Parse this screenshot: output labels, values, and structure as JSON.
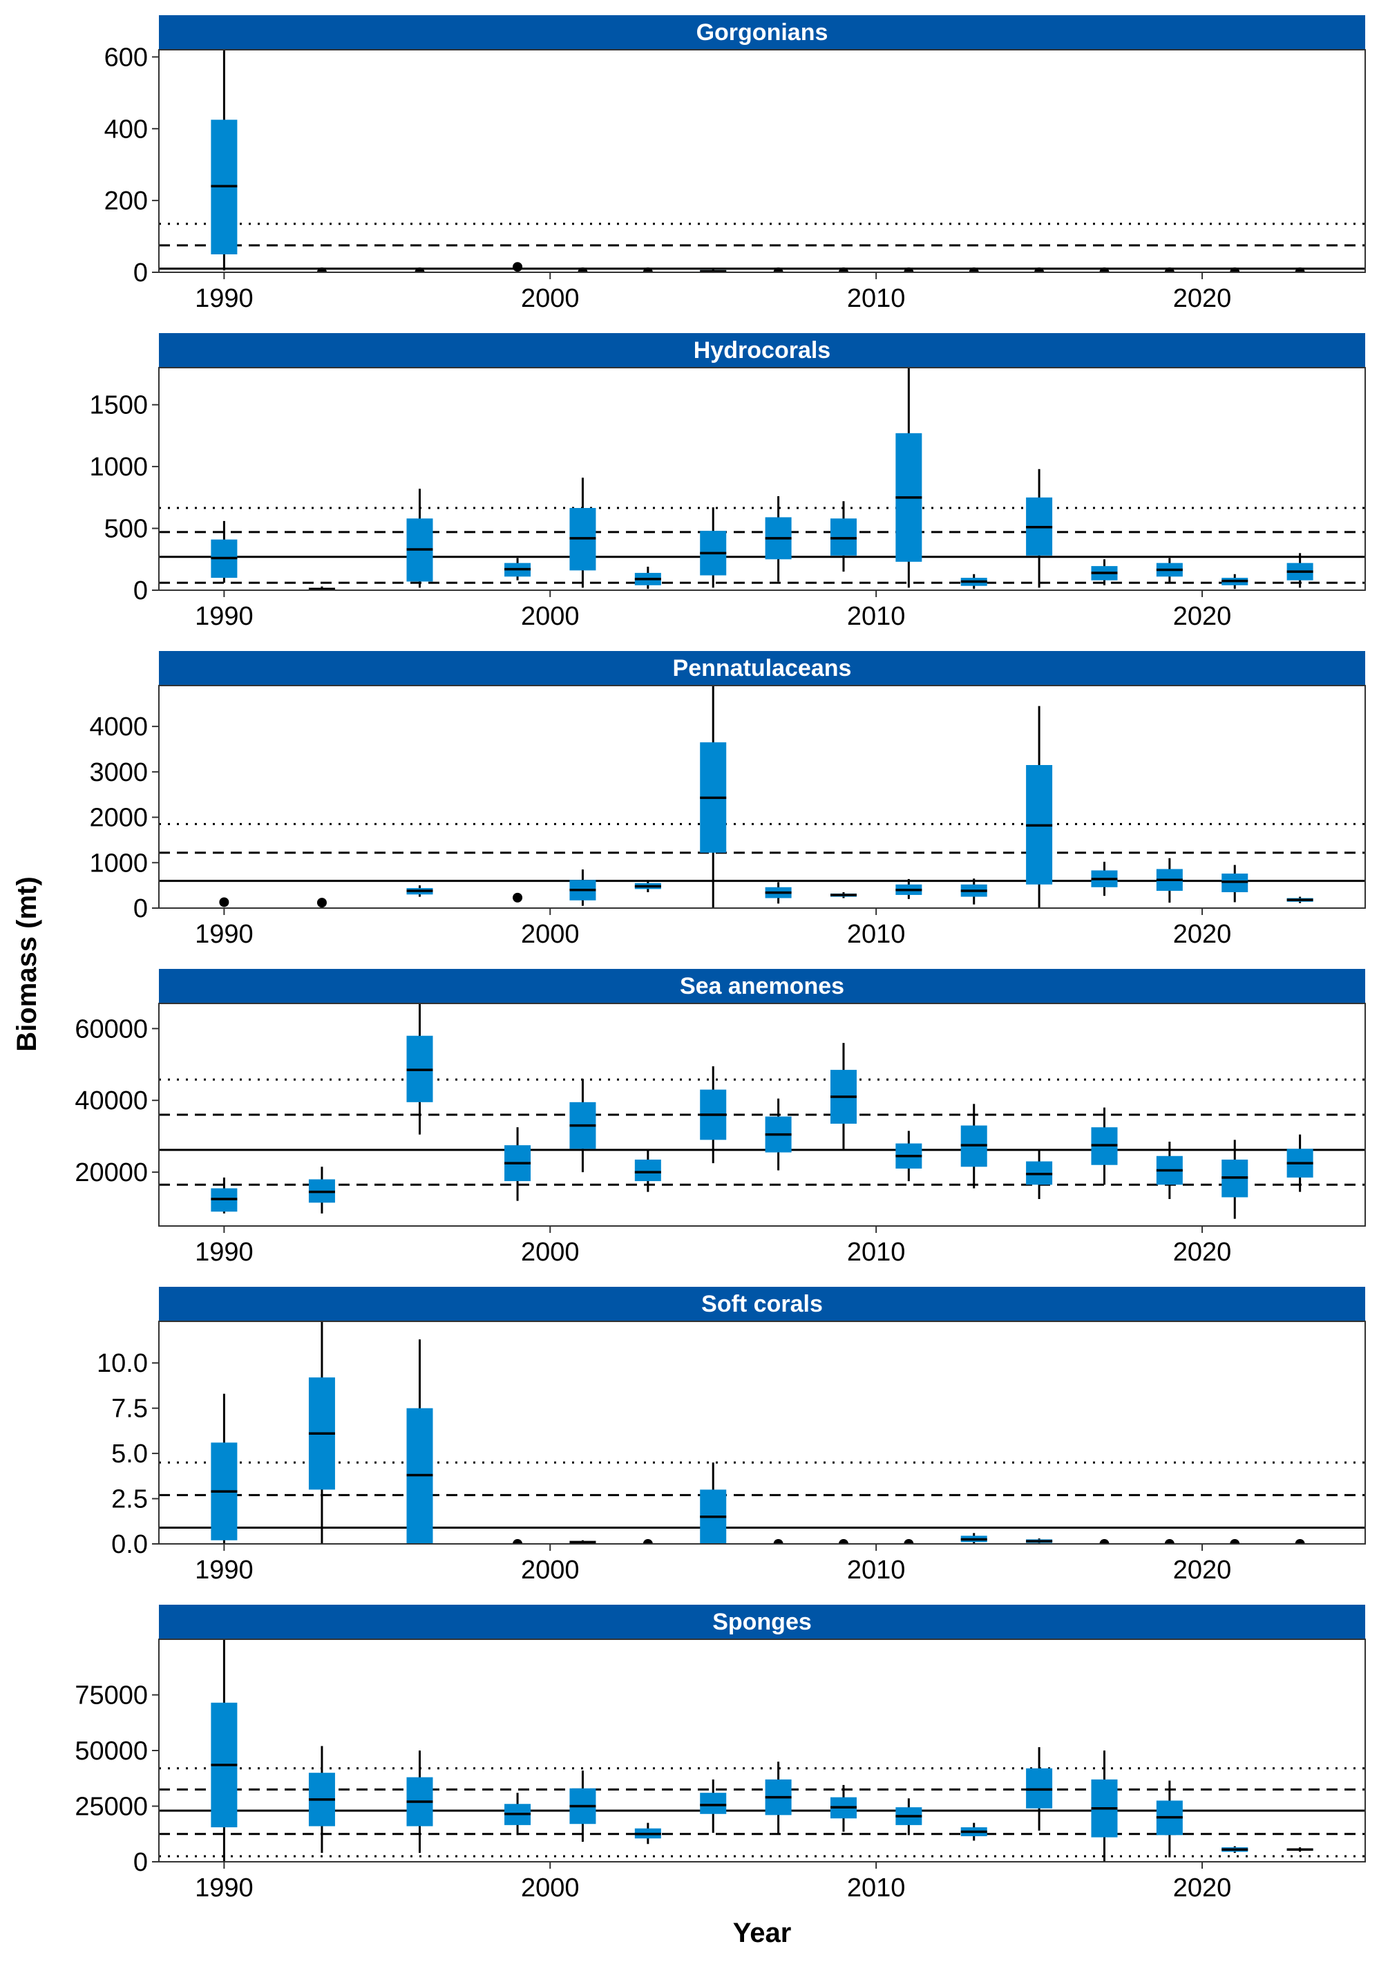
{
  "figure": {
    "xlabel": "Year",
    "ylabel": "Biomass (mt)",
    "colors": {
      "box": "#0088d1",
      "strip": "#0055a6",
      "strip_text": "#ffffff",
      "line": "#000000"
    }
  },
  "chart_data": [
    {
      "type": "box",
      "title": "Gorgonians",
      "xlim": [
        1988,
        2025
      ],
      "ylim": [
        0,
        620
      ],
      "xticks": [
        1990,
        2000,
        2010,
        2020
      ],
      "yticks": [
        0,
        200,
        400,
        600
      ],
      "ytick_labels": [
        "0",
        "200",
        "400",
        "600"
      ],
      "ref_lines": {
        "solid": 10,
        "dashed": [
          75
        ],
        "dotted": [
          135
        ]
      },
      "boxes": [
        {
          "x": 1990,
          "lo": 5,
          "q1": 50,
          "med": 240,
          "q3": 425,
          "hi": 620
        },
        {
          "x": 1993,
          "lo": 0,
          "q1": 0,
          "med": 0,
          "q3": 0,
          "hi": 0,
          "dot": true
        },
        {
          "x": 1996,
          "lo": 0,
          "q1": 0,
          "med": 0,
          "q3": 0,
          "hi": 0,
          "dot": true
        },
        {
          "x": 1999,
          "lo": 15,
          "q1": 15,
          "med": 15,
          "q3": 15,
          "hi": 15,
          "dot": true
        },
        {
          "x": 2001,
          "lo": 0,
          "q1": 0,
          "med": 0,
          "q3": 0,
          "hi": 0,
          "dot": true
        },
        {
          "x": 2003,
          "lo": 0,
          "q1": 0,
          "med": 0,
          "q3": 0,
          "hi": 0,
          "dot": true
        },
        {
          "x": 2005,
          "lo": 0,
          "q1": 1,
          "med": 3,
          "q3": 6,
          "hi": 9
        },
        {
          "x": 2007,
          "lo": 0,
          "q1": 0,
          "med": 0,
          "q3": 0,
          "hi": 0,
          "dot": true
        },
        {
          "x": 2009,
          "lo": 0,
          "q1": 0,
          "med": 0,
          "q3": 0,
          "hi": 0,
          "dot": true
        },
        {
          "x": 2011,
          "lo": 0,
          "q1": 0,
          "med": 0,
          "q3": 0,
          "hi": 0,
          "dot": true
        },
        {
          "x": 2013,
          "lo": 0,
          "q1": 0,
          "med": 0,
          "q3": 0,
          "hi": 0,
          "dot": true
        },
        {
          "x": 2015,
          "lo": 0,
          "q1": 0,
          "med": 0,
          "q3": 0,
          "hi": 0,
          "dot": true
        },
        {
          "x": 2017,
          "lo": 0,
          "q1": 0,
          "med": 0,
          "q3": 0,
          "hi": 0,
          "dot": true
        },
        {
          "x": 2019,
          "lo": 0,
          "q1": 0,
          "med": 0,
          "q3": 0,
          "hi": 0,
          "dot": true
        },
        {
          "x": 2021,
          "lo": 0,
          "q1": 0,
          "med": 0,
          "q3": 0,
          "hi": 0,
          "dot": true
        },
        {
          "x": 2023,
          "lo": 0,
          "q1": 0,
          "med": 0,
          "q3": 0,
          "hi": 0,
          "dot": true
        }
      ]
    },
    {
      "type": "box",
      "title": "Hydrocorals",
      "xlim": [
        1988,
        2025
      ],
      "ylim": [
        0,
        1800
      ],
      "xticks": [
        1990,
        2000,
        2010,
        2020
      ],
      "yticks": [
        0,
        500,
        1000,
        1500
      ],
      "ytick_labels": [
        "0",
        "500",
        "1000",
        "1500"
      ],
      "ref_lines": {
        "solid": 270,
        "dashed": [
          60,
          470
        ],
        "dotted": [
          665
        ]
      },
      "boxes": [
        {
          "x": 1990,
          "lo": 60,
          "q1": 100,
          "med": 260,
          "q3": 410,
          "hi": 560
        },
        {
          "x": 1993,
          "lo": 0,
          "q1": 5,
          "med": 10,
          "q3": 15,
          "hi": 30
        },
        {
          "x": 1996,
          "lo": 20,
          "q1": 70,
          "med": 330,
          "q3": 580,
          "hi": 820
        },
        {
          "x": 1999,
          "lo": 80,
          "q1": 110,
          "med": 170,
          "q3": 220,
          "hi": 260
        },
        {
          "x": 2001,
          "lo": 20,
          "q1": 160,
          "med": 420,
          "q3": 665,
          "hi": 910
        },
        {
          "x": 2003,
          "lo": 10,
          "q1": 40,
          "med": 90,
          "q3": 140,
          "hi": 190
        },
        {
          "x": 2005,
          "lo": 20,
          "q1": 120,
          "med": 300,
          "q3": 480,
          "hi": 670
        },
        {
          "x": 2007,
          "lo": 70,
          "q1": 250,
          "med": 420,
          "q3": 590,
          "hi": 760
        },
        {
          "x": 2009,
          "lo": 150,
          "q1": 280,
          "med": 420,
          "q3": 580,
          "hi": 720
        },
        {
          "x": 2011,
          "lo": 20,
          "q1": 230,
          "med": 750,
          "q3": 1270,
          "hi": 1800
        },
        {
          "x": 2013,
          "lo": 10,
          "q1": 35,
          "med": 70,
          "q3": 100,
          "hi": 130
        },
        {
          "x": 2015,
          "lo": 20,
          "q1": 280,
          "med": 510,
          "q3": 750,
          "hi": 980
        },
        {
          "x": 2017,
          "lo": 40,
          "q1": 80,
          "med": 140,
          "q3": 195,
          "hi": 250
        },
        {
          "x": 2019,
          "lo": 60,
          "q1": 110,
          "med": 165,
          "q3": 220,
          "hi": 260
        },
        {
          "x": 2021,
          "lo": 10,
          "q1": 40,
          "med": 75,
          "q3": 100,
          "hi": 130
        },
        {
          "x": 2023,
          "lo": 20,
          "q1": 80,
          "med": 150,
          "q3": 220,
          "hi": 300
        }
      ]
    },
    {
      "type": "box",
      "title": "Pennatulaceans",
      "xlim": [
        1988,
        2025
      ],
      "ylim": [
        0,
        4900
      ],
      "xticks": [
        1990,
        2000,
        2010,
        2020
      ],
      "yticks": [
        0,
        1000,
        2000,
        3000,
        4000
      ],
      "ytick_labels": [
        "0",
        "1000",
        "2000",
        "3000",
        "4000"
      ],
      "ref_lines": {
        "solid": 600,
        "dashed": [
          1220
        ],
        "dotted": [
          1850
        ]
      },
      "boxes": [
        {
          "x": 1990,
          "lo": 130,
          "q1": 130,
          "med": 130,
          "q3": 130,
          "hi": 130,
          "dot": true
        },
        {
          "x": 1993,
          "lo": 120,
          "q1": 120,
          "med": 120,
          "q3": 120,
          "hi": 120,
          "dot": true
        },
        {
          "x": 1996,
          "lo": 250,
          "q1": 300,
          "med": 380,
          "q3": 440,
          "hi": 500
        },
        {
          "x": 1999,
          "lo": 230,
          "q1": 230,
          "med": 230,
          "q3": 230,
          "hi": 230,
          "dot": true
        },
        {
          "x": 2001,
          "lo": 50,
          "q1": 170,
          "med": 400,
          "q3": 620,
          "hi": 850
        },
        {
          "x": 2003,
          "lo": 350,
          "q1": 420,
          "med": 480,
          "q3": 550,
          "hi": 600
        },
        {
          "x": 2005,
          "lo": 0,
          "q1": 1220,
          "med": 2430,
          "q3": 3650,
          "hi": 4900
        },
        {
          "x": 2007,
          "lo": 100,
          "q1": 220,
          "med": 340,
          "q3": 460,
          "hi": 570
        },
        {
          "x": 2009,
          "lo": 220,
          "q1": 250,
          "med": 290,
          "q3": 320,
          "hi": 350
        },
        {
          "x": 2011,
          "lo": 200,
          "q1": 290,
          "med": 400,
          "q3": 520,
          "hi": 640
        },
        {
          "x": 2013,
          "lo": 80,
          "q1": 250,
          "med": 380,
          "q3": 520,
          "hi": 650
        },
        {
          "x": 2015,
          "lo": 0,
          "q1": 520,
          "med": 1820,
          "q3": 3150,
          "hi": 4450
        },
        {
          "x": 2017,
          "lo": 270,
          "q1": 460,
          "med": 640,
          "q3": 830,
          "hi": 1020
        },
        {
          "x": 2019,
          "lo": 120,
          "q1": 380,
          "med": 620,
          "q3": 860,
          "hi": 1100
        },
        {
          "x": 2021,
          "lo": 130,
          "q1": 350,
          "med": 580,
          "q3": 760,
          "hi": 950
        },
        {
          "x": 2023,
          "lo": 110,
          "q1": 140,
          "med": 180,
          "q3": 220,
          "hi": 250
        }
      ]
    },
    {
      "type": "box",
      "title": "Sea anemones",
      "xlim": [
        1988,
        2025
      ],
      "ylim": [
        5000,
        67000
      ],
      "xticks": [
        1990,
        2000,
        2010,
        2020
      ],
      "yticks": [
        20000,
        40000,
        60000
      ],
      "ytick_labels": [
        "20000",
        "40000",
        "60000"
      ],
      "ref_lines": {
        "solid": 26200,
        "dashed": [
          16500,
          36000
        ],
        "dotted": [
          45800
        ]
      },
      "boxes": [
        {
          "x": 1990,
          "lo": 8500,
          "q1": 9000,
          "med": 12500,
          "q3": 15500,
          "hi": 18500
        },
        {
          "x": 1993,
          "lo": 8500,
          "q1": 11500,
          "med": 14500,
          "q3": 18000,
          "hi": 21500
        },
        {
          "x": 1996,
          "lo": 30500,
          "q1": 39500,
          "med": 48500,
          "q3": 58000,
          "hi": 67000
        },
        {
          "x": 1999,
          "lo": 12000,
          "q1": 17500,
          "med": 22500,
          "q3": 27500,
          "hi": 32500
        },
        {
          "x": 2001,
          "lo": 20000,
          "q1": 26500,
          "med": 33000,
          "q3": 39500,
          "hi": 46000
        },
        {
          "x": 2003,
          "lo": 14500,
          "q1": 17500,
          "med": 20000,
          "q3": 23500,
          "hi": 26000
        },
        {
          "x": 2005,
          "lo": 22500,
          "q1": 29000,
          "med": 36000,
          "q3": 43000,
          "hi": 49500
        },
        {
          "x": 2007,
          "lo": 20500,
          "q1": 25500,
          "med": 30500,
          "q3": 35500,
          "hi": 40500
        },
        {
          "x": 2009,
          "lo": 26500,
          "q1": 33500,
          "med": 41000,
          "q3": 48500,
          "hi": 56000
        },
        {
          "x": 2011,
          "lo": 17500,
          "q1": 21000,
          "med": 24500,
          "q3": 28000,
          "hi": 31500
        },
        {
          "x": 2013,
          "lo": 15500,
          "q1": 21500,
          "med": 27500,
          "q3": 33000,
          "hi": 39000
        },
        {
          "x": 2015,
          "lo": 12500,
          "q1": 16500,
          "med": 19500,
          "q3": 23000,
          "hi": 26000
        },
        {
          "x": 2017,
          "lo": 16500,
          "q1": 22000,
          "med": 27500,
          "q3": 32500,
          "hi": 38000
        },
        {
          "x": 2019,
          "lo": 12500,
          "q1": 16500,
          "med": 20500,
          "q3": 24500,
          "hi": 28500
        },
        {
          "x": 2021,
          "lo": 7000,
          "q1": 13000,
          "med": 18500,
          "q3": 23500,
          "hi": 29000
        },
        {
          "x": 2023,
          "lo": 14500,
          "q1": 18500,
          "med": 22500,
          "q3": 26500,
          "hi": 30500
        }
      ]
    },
    {
      "type": "box",
      "title": "Soft corals",
      "xlim": [
        1988,
        2025
      ],
      "ylim": [
        0,
        12.3
      ],
      "xticks": [
        1990,
        2000,
        2010,
        2020
      ],
      "yticks": [
        0,
        2.5,
        5,
        7.5,
        10
      ],
      "ytick_labels": [
        "0.0",
        "2.5",
        "5.0",
        "7.5",
        "10.0"
      ],
      "ref_lines": {
        "solid": 0.9,
        "dashed": [
          2.7
        ],
        "dotted": [
          4.5
        ]
      },
      "boxes": [
        {
          "x": 1990,
          "lo": 0,
          "q1": 0.2,
          "med": 2.9,
          "q3": 5.6,
          "hi": 8.3
        },
        {
          "x": 1993,
          "lo": 0,
          "q1": 3,
          "med": 6.1,
          "q3": 9.2,
          "hi": 12.3
        },
        {
          "x": 1996,
          "lo": 0,
          "q1": 0,
          "med": 3.8,
          "q3": 7.5,
          "hi": 11.3
        },
        {
          "x": 1999,
          "lo": 0,
          "q1": 0,
          "med": 0,
          "q3": 0,
          "hi": 0,
          "dot": true
        },
        {
          "x": 2001,
          "lo": 0,
          "q1": 0.05,
          "med": 0.1,
          "q3": 0.15,
          "hi": 0.2
        },
        {
          "x": 2003,
          "lo": 0,
          "q1": 0,
          "med": 0,
          "q3": 0,
          "hi": 0,
          "dot": true
        },
        {
          "x": 2005,
          "lo": 0,
          "q1": 0,
          "med": 1.5,
          "q3": 3,
          "hi": 4.5
        },
        {
          "x": 2007,
          "lo": 0,
          "q1": 0,
          "med": 0,
          "q3": 0,
          "hi": 0,
          "dot": true
        },
        {
          "x": 2009,
          "lo": 0,
          "q1": 0,
          "med": 0,
          "q3": 0,
          "hi": 0,
          "dot": true
        },
        {
          "x": 2011,
          "lo": 0,
          "q1": 0,
          "med": 0,
          "q3": 0,
          "hi": 0,
          "dot": true
        },
        {
          "x": 2013,
          "lo": 0,
          "q1": 0.1,
          "med": 0.25,
          "q3": 0.45,
          "hi": 0.6
        },
        {
          "x": 2015,
          "lo": 0,
          "q1": 0.05,
          "med": 0.15,
          "q3": 0.25,
          "hi": 0.3
        },
        {
          "x": 2017,
          "lo": 0,
          "q1": 0,
          "med": 0,
          "q3": 0,
          "hi": 0,
          "dot": true
        },
        {
          "x": 2019,
          "lo": 0,
          "q1": 0,
          "med": 0,
          "q3": 0,
          "hi": 0,
          "dot": true
        },
        {
          "x": 2021,
          "lo": 0,
          "q1": 0,
          "med": 0,
          "q3": 0,
          "hi": 0,
          "dot": true
        },
        {
          "x": 2023,
          "lo": 0,
          "q1": 0,
          "med": 0,
          "q3": 0,
          "hi": 0,
          "dot": true
        }
      ]
    },
    {
      "type": "box",
      "title": "Sponges",
      "xlim": [
        1988,
        2025
      ],
      "ylim": [
        0,
        100000
      ],
      "xticks": [
        1990,
        2000,
        2010,
        2020
      ],
      "yticks": [
        0,
        25000,
        50000,
        75000
      ],
      "ytick_labels": [
        "0",
        "25000",
        "50000",
        "75000"
      ],
      "ref_lines": {
        "solid": 23000,
        "dashed": [
          12500,
          32500
        ],
        "dotted": [
          2500,
          42000
        ]
      },
      "boxes": [
        {
          "x": 1990,
          "lo": 0,
          "q1": 15500,
          "med": 43500,
          "q3": 71500,
          "hi": 100000
        },
        {
          "x": 1993,
          "lo": 4000,
          "q1": 16000,
          "med": 28000,
          "q3": 40000,
          "hi": 52000
        },
        {
          "x": 1996,
          "lo": 4000,
          "q1": 16000,
          "med": 27000,
          "q3": 38000,
          "hi": 50000
        },
        {
          "x": 1999,
          "lo": 12000,
          "q1": 16500,
          "med": 21500,
          "q3": 26000,
          "hi": 31000
        },
        {
          "x": 2001,
          "lo": 9000,
          "q1": 17000,
          "med": 25000,
          "q3": 33000,
          "hi": 41000
        },
        {
          "x": 2003,
          "lo": 8000,
          "q1": 10500,
          "med": 12500,
          "q3": 15000,
          "hi": 17500
        },
        {
          "x": 2005,
          "lo": 13000,
          "q1": 21500,
          "med": 25500,
          "q3": 31000,
          "hi": 37000
        },
        {
          "x": 2007,
          "lo": 12500,
          "q1": 21000,
          "med": 29000,
          "q3": 37000,
          "hi": 45000
        },
        {
          "x": 2009,
          "lo": 13500,
          "q1": 19500,
          "med": 24500,
          "q3": 29000,
          "hi": 34500
        },
        {
          "x": 2011,
          "lo": 12000,
          "q1": 16500,
          "med": 20500,
          "q3": 24500,
          "hi": 28500
        },
        {
          "x": 2013,
          "lo": 9500,
          "q1": 11500,
          "med": 13500,
          "q3": 15500,
          "hi": 17500
        },
        {
          "x": 2015,
          "lo": 14000,
          "q1": 24000,
          "med": 32500,
          "q3": 42000,
          "hi": 51500
        },
        {
          "x": 2017,
          "lo": 0,
          "q1": 11000,
          "med": 24000,
          "q3": 37000,
          "hi": 50000
        },
        {
          "x": 2019,
          "lo": 2000,
          "q1": 12000,
          "med": 20000,
          "q3": 27500,
          "hi": 36500
        },
        {
          "x": 2021,
          "lo": 4000,
          "q1": 4500,
          "med": 5500,
          "q3": 6500,
          "hi": 7000
        },
        {
          "x": 2023,
          "lo": 4500,
          "q1": 5000,
          "med": 5500,
          "q3": 6000,
          "hi": 6500
        }
      ]
    }
  ]
}
